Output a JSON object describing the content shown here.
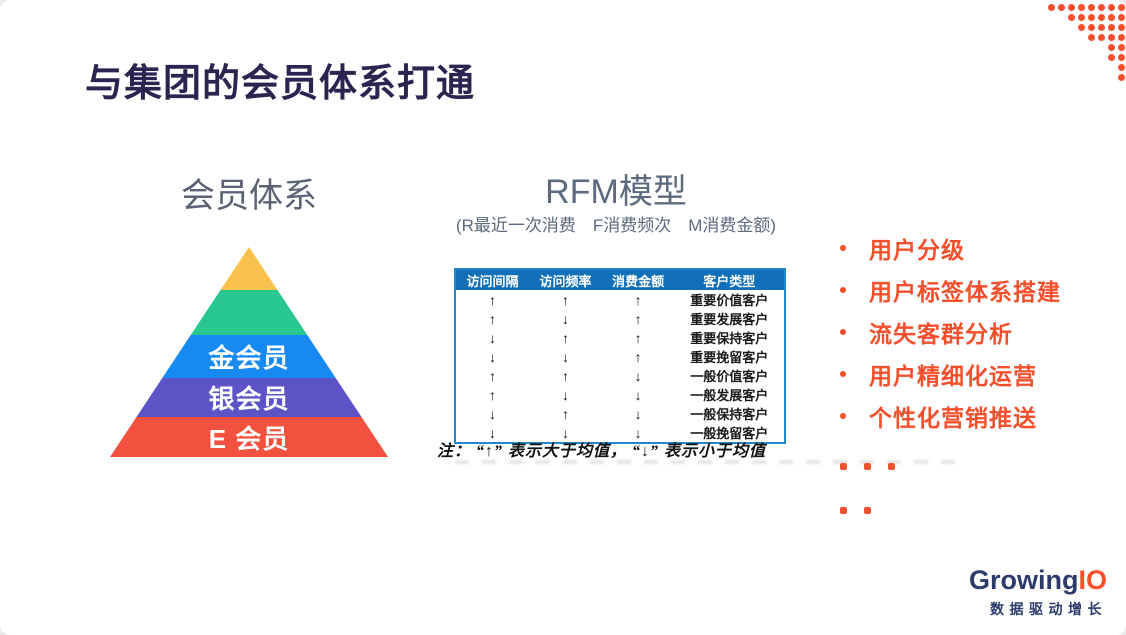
{
  "slide": {
    "title": "与集团的会员体系打通"
  },
  "membership": {
    "heading": "会员体系",
    "tiers": [
      {
        "name": "tier-top",
        "label": "",
        "color": "#FAC14E"
      },
      {
        "name": "tier-second",
        "label": "",
        "color": "#27C78F"
      },
      {
        "name": "tier-gold",
        "label": "金会员",
        "color": "#1689F2"
      },
      {
        "name": "tier-silver",
        "label": "银会员",
        "color": "#5C54C6"
      },
      {
        "name": "tier-e",
        "label": "E 会员",
        "color": "#F2513F"
      }
    ]
  },
  "rfm": {
    "heading": "RFM模型",
    "subtitle": "(R最近一次消费　F消费频次　M消费金额)",
    "table": {
      "header_bg": "#1170B8",
      "headers": [
        "访问间隔",
        "访问频率",
        "消费金额",
        "客户类型"
      ],
      "rows": [
        [
          "↑",
          "↑",
          "↑",
          "重要价值客户"
        ],
        [
          "↑",
          "↓",
          "↑",
          "重要发展客户"
        ],
        [
          "↓",
          "↑",
          "↑",
          "重要保持客户"
        ],
        [
          "↓",
          "↓",
          "↑",
          "重要挽留客户"
        ],
        [
          "↑",
          "↑",
          "↓",
          "一般价值客户"
        ],
        [
          "↑",
          "↓",
          "↓",
          "一般发展客户"
        ],
        [
          "↓",
          "↑",
          "↓",
          "一般保持客户"
        ],
        [
          "↓",
          "↓",
          "↓",
          "一般挽留客户"
        ]
      ]
    },
    "note": "注： “↑” 表示大于均值， “↓” 表示小于均值"
  },
  "benefits": {
    "color": "#F4502E",
    "items": [
      "用户分级",
      "用户标签体系搭建",
      "流失客群分析",
      "用户精细化运营",
      "个性化营销推送"
    ],
    "ellipsis_rows": [
      3,
      2
    ]
  },
  "decor": {
    "dot_color": "#F4502E",
    "corner_dot_rows": [
      8,
      6,
      5,
      4,
      2,
      2,
      1,
      1
    ]
  },
  "logo": {
    "brand_primary": "Growing",
    "brand_accent": "IO",
    "tagline": "数据驱动增长",
    "primary_color": "#2B3B6B",
    "accent_color": "#FF4E28"
  }
}
